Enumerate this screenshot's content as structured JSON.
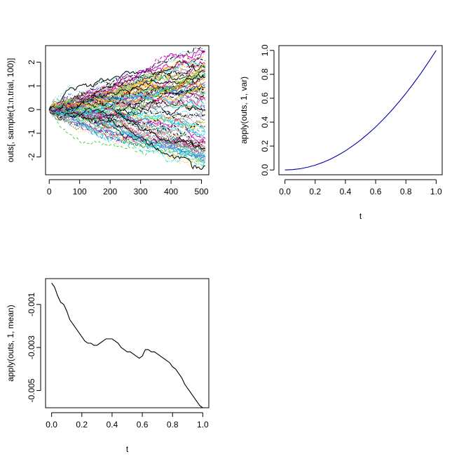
{
  "chart_data": [
    {
      "type": "line",
      "title": "",
      "xlabel": "",
      "ylabel": "outs[, sample(1:n.trial, 100)]",
      "xlim": [
        -12,
        524
      ],
      "ylim": [
        -2.75,
        2.7
      ],
      "x_ticks": [
        0,
        100,
        200,
        300,
        400,
        500
      ],
      "x_tick_labels": [
        "0",
        "100",
        "200",
        "300",
        "400",
        "500"
      ],
      "y_ticks": [
        -2,
        -1,
        0,
        1,
        2
      ],
      "y_tick_labels": [
        "-2",
        "-1",
        "0",
        "1",
        "2"
      ],
      "grid": false,
      "n_series": 100,
      "n_points": 513,
      "envelope_start": 0,
      "envelope_end": [
        -2.55,
        2.55
      ],
      "palette": [
        "#000000",
        "#000000",
        "#DF536B",
        "#61D04F",
        "#2297E6",
        "#28E2E5",
        "#CD0BBC",
        "#F5C710",
        "#9E9E9E"
      ]
    },
    {
      "type": "line",
      "title": "",
      "xlabel": "t",
      "ylabel": "apply(outs, 1, var)",
      "xlim": [
        -0.04,
        1.04
      ],
      "ylim": [
        -0.04,
        1.04
      ],
      "x_ticks": [
        0,
        0.2,
        0.4,
        0.6,
        0.8,
        1.0
      ],
      "x_tick_labels": [
        "0.0",
        "0.2",
        "0.4",
        "0.6",
        "0.8",
        "1.0"
      ],
      "y_ticks": [
        0,
        0.2,
        0.4,
        0.6,
        0.8,
        1.0
      ],
      "y_tick_labels": [
        "0.0",
        "0.2",
        "0.4",
        "0.6",
        "0.8",
        "1.0"
      ],
      "grid": false,
      "series": [
        {
          "color": "#0000AA",
          "x": [
            0,
            0.05,
            0.1,
            0.15,
            0.2,
            0.25,
            0.3,
            0.35,
            0.4,
            0.45,
            0.5,
            0.55,
            0.6,
            0.65,
            0.7,
            0.75,
            0.8,
            0.85,
            0.9,
            0.95,
            1.0
          ],
          "y": [
            0,
            0.003,
            0.01,
            0.023,
            0.04,
            0.063,
            0.09,
            0.123,
            0.16,
            0.203,
            0.25,
            0.303,
            0.36,
            0.423,
            0.49,
            0.563,
            0.64,
            0.723,
            0.81,
            0.903,
            1.0
          ]
        }
      ]
    },
    {
      "type": "line",
      "title": "",
      "xlabel": "t",
      "ylabel": "apply(outs, 1, mean)",
      "xlim": [
        -0.04,
        1.04
      ],
      "ylim": [
        -0.0058,
        0.0002
      ],
      "x_ticks": [
        0,
        0.2,
        0.4,
        0.6,
        0.8,
        1.0
      ],
      "x_tick_labels": [
        "0.0",
        "0.2",
        "0.4",
        "0.6",
        "0.8",
        "1.0"
      ],
      "y_ticks": [
        -0.001,
        -0.003,
        -0.005
      ],
      "y_tick_labels": [
        "-0.001",
        "-0.003",
        "-0.005"
      ],
      "grid": false,
      "series": [
        {
          "color": "#000000",
          "x": [
            0,
            0.02,
            0.04,
            0.06,
            0.08,
            0.1,
            0.12,
            0.14,
            0.16,
            0.18,
            0.2,
            0.22,
            0.24,
            0.26,
            0.28,
            0.3,
            0.32,
            0.34,
            0.36,
            0.38,
            0.4,
            0.42,
            0.44,
            0.46,
            0.48,
            0.5,
            0.52,
            0.54,
            0.56,
            0.58,
            0.6,
            0.62,
            0.64,
            0.66,
            0.68,
            0.7,
            0.72,
            0.74,
            0.76,
            0.78,
            0.8,
            0.82,
            0.84,
            0.86,
            0.88,
            0.9,
            0.92,
            0.94,
            0.96,
            0.98,
            1.0
          ],
          "y": [
            0,
            -0.0002,
            -0.0006,
            -0.0009,
            -0.001,
            -0.0013,
            -0.0017,
            -0.0019,
            -0.0021,
            -0.0023,
            -0.0025,
            -0.0027,
            -0.0028,
            -0.0028,
            -0.0029,
            -0.0029,
            -0.0028,
            -0.0027,
            -0.0026,
            -0.0026,
            -0.0026,
            -0.0027,
            -0.0028,
            -0.003,
            -0.0031,
            -0.0032,
            -0.0032,
            -0.0033,
            -0.0034,
            -0.0035,
            -0.0034,
            -0.0031,
            -0.0031,
            -0.0032,
            -0.0032,
            -0.0033,
            -0.0034,
            -0.0035,
            -0.0036,
            -0.0037,
            -0.0039,
            -0.004,
            -0.0042,
            -0.0044,
            -0.0047,
            -0.0049,
            -0.0051,
            -0.0053,
            -0.0055,
            -0.0057,
            -0.0058
          ]
        }
      ]
    }
  ]
}
